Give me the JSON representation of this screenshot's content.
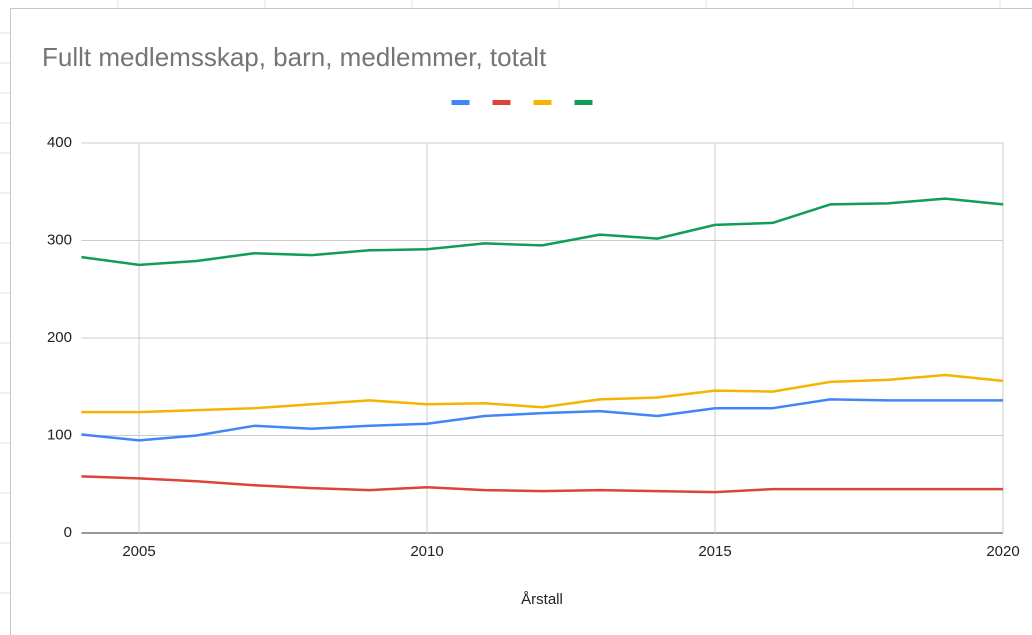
{
  "chart_data": {
    "type": "line",
    "title": "Fullt medlemsskap, barn, medlemmer, totalt",
    "xlabel": "Årstall",
    "x": [
      2004,
      2005,
      2006,
      2007,
      2008,
      2009,
      2010,
      2011,
      2012,
      2013,
      2014,
      2015,
      2016,
      2017,
      2018,
      2019,
      2020
    ],
    "series": [
      {
        "color": "#4285f4",
        "values": [
          101,
          95,
          100,
          110,
          107,
          110,
          112,
          120,
          123,
          125,
          120,
          128,
          128,
          137,
          136,
          136,
          136
        ]
      },
      {
        "color": "#db4437",
        "values": [
          58,
          56,
          53,
          49,
          46,
          44,
          47,
          44,
          43,
          44,
          43,
          42,
          45,
          45,
          45,
          45,
          45
        ]
      },
      {
        "color": "#f4b400",
        "values": [
          124,
          124,
          126,
          128,
          132,
          136,
          132,
          133,
          129,
          137,
          139,
          146,
          145,
          155,
          157,
          162,
          156
        ]
      },
      {
        "color": "#0f9d58",
        "values": [
          283,
          275,
          279,
          287,
          285,
          290,
          291,
          297,
          295,
          306,
          302,
          316,
          318,
          337,
          338,
          343,
          337
        ]
      }
    ],
    "xlim": [
      2004,
      2020
    ],
    "xticks": [
      2005,
      2010,
      2015,
      2020
    ],
    "ylim": [
      0,
      400
    ],
    "yticks": [
      0,
      100,
      200,
      300,
      400
    ],
    "grid": true
  }
}
